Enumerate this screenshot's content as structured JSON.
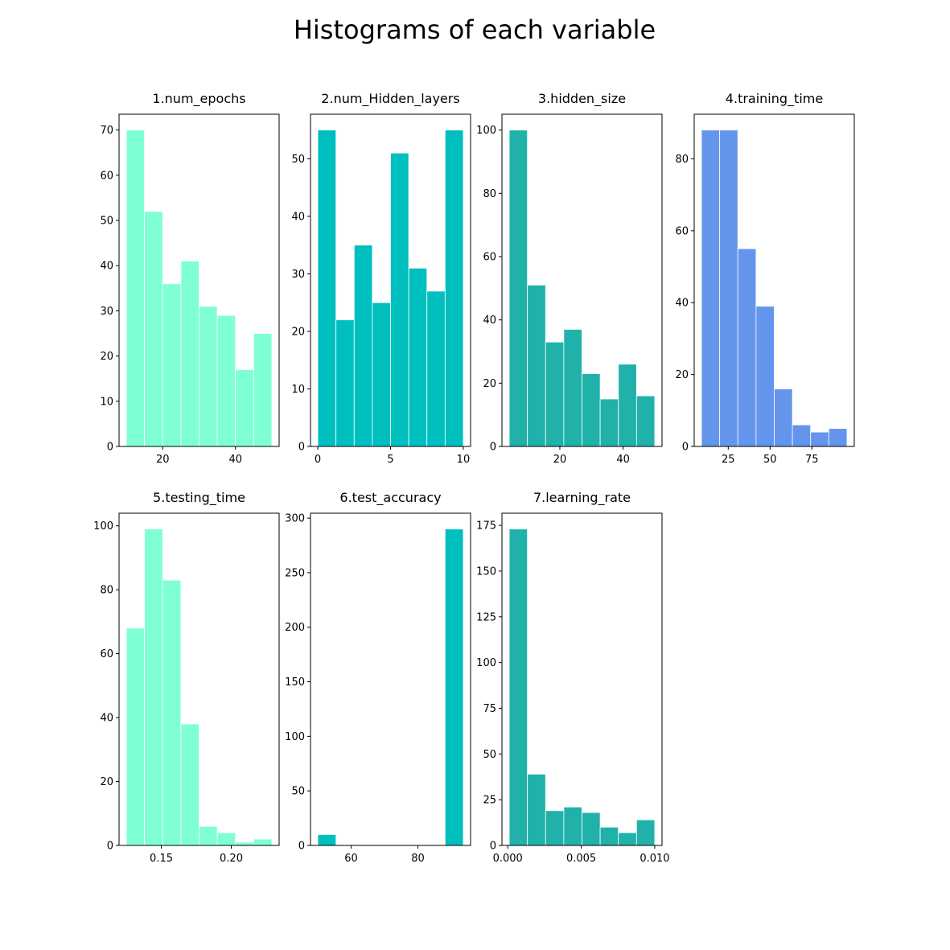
{
  "title": "Histograms of each variable",
  "chart_data": [
    {
      "type": "histogram",
      "title": "1.num_epochs",
      "color": "#7fffd4",
      "bins": [
        10,
        15,
        20,
        25,
        30,
        35,
        40,
        45,
        50
      ],
      "counts": [
        70,
        52,
        36,
        41,
        31,
        29,
        17,
        25
      ],
      "xlim": [
        8,
        52
      ],
      "xticks": [
        20,
        40
      ],
      "ylim": [
        0,
        73.5
      ],
      "yticks": [
        0,
        10,
        20,
        30,
        40,
        50,
        60,
        70
      ]
    },
    {
      "type": "histogram",
      "title": "2.num_Hidden_layers",
      "color": "#00bfbf",
      "bins": [
        0,
        1.25,
        2.5,
        3.75,
        5,
        6.25,
        7.5,
        8.75,
        10
      ],
      "counts": [
        55,
        22,
        35,
        25,
        51,
        31,
        27,
        55
      ],
      "xlim": [
        -0.5,
        10.5
      ],
      "xticks": [
        0,
        5,
        10
      ],
      "ylim": [
        0,
        57.75
      ],
      "yticks": [
        0,
        10,
        20,
        30,
        40,
        50
      ]
    },
    {
      "type": "histogram",
      "title": "3.hidden_size",
      "color": "#20b2aa",
      "bins": [
        4,
        9.75,
        15.5,
        21.25,
        27,
        32.75,
        38.5,
        44.25,
        50
      ],
      "counts": [
        100,
        51,
        33,
        37,
        23,
        15,
        26,
        16
      ],
      "xlim": [
        1.7,
        52.3
      ],
      "xticks": [
        20,
        40
      ],
      "ylim": [
        0,
        105
      ],
      "yticks": [
        0,
        20,
        40,
        60,
        80,
        100
      ]
    },
    {
      "type": "histogram",
      "title": "4.training_time",
      "color": "#6495ed",
      "bins": [
        9,
        19.875,
        30.75,
        41.625,
        52.5,
        63.375,
        74.25,
        85.125,
        96
      ],
      "counts": [
        88,
        88,
        55,
        39,
        16,
        6,
        4,
        5
      ],
      "xlim": [
        4.65,
        100.35
      ],
      "xticks": [
        25,
        50,
        75
      ],
      "ylim": [
        0,
        92.4
      ],
      "yticks": [
        0,
        20,
        40,
        60,
        80
      ]
    },
    {
      "type": "histogram",
      "title": "5.testing_time",
      "color": "#7fffd4",
      "bins": [
        0.125,
        0.138,
        0.151,
        0.164,
        0.177,
        0.19,
        0.203,
        0.216,
        0.229
      ],
      "counts": [
        68,
        99,
        83,
        38,
        6,
        4,
        1,
        2
      ],
      "xlim": [
        0.1198,
        0.2342
      ],
      "xticks": [
        0.15,
        {
          "value": 0.2,
          "label": "0.20"
        }
      ],
      "ylim": [
        0,
        103.95
      ],
      "yticks": [
        0,
        20,
        40,
        60,
        80,
        100
      ]
    },
    {
      "type": "histogram",
      "title": "6.test_accuracy",
      "color": "#00bfbf",
      "bins": [
        50,
        55.45,
        60.9,
        66.35,
        71.8,
        77.25,
        82.7,
        88.15,
        93.6
      ],
      "counts": [
        10,
        0,
        0,
        0,
        0,
        0,
        0,
        290
      ],
      "xlim": [
        47.82,
        95.78
      ],
      "xticks": [
        60,
        80
      ],
      "ylim": [
        0,
        304.5
      ],
      "yticks": [
        0,
        50,
        100,
        150,
        200,
        250,
        300
      ]
    },
    {
      "type": "histogram",
      "title": "7.learning_rate",
      "color": "#20b2aa",
      "bins": [
        0.0001,
        0.0013375,
        0.002575,
        0.0038125,
        0.00505,
        0.0062875,
        0.007525,
        0.0087625,
        0.01
      ],
      "counts": [
        173,
        39,
        19,
        21,
        18,
        10,
        7,
        14
      ],
      "xlim": [
        -0.000395,
        0.010495
      ],
      "xticks": [
        {
          "value": 0,
          "label": "0.000"
        },
        0.005,
        {
          "value": 0.01,
          "label": "0.010"
        }
      ],
      "ylim": [
        0,
        181.65
      ],
      "yticks": [
        0,
        25,
        50,
        75,
        100,
        125,
        150,
        175
      ]
    }
  ]
}
